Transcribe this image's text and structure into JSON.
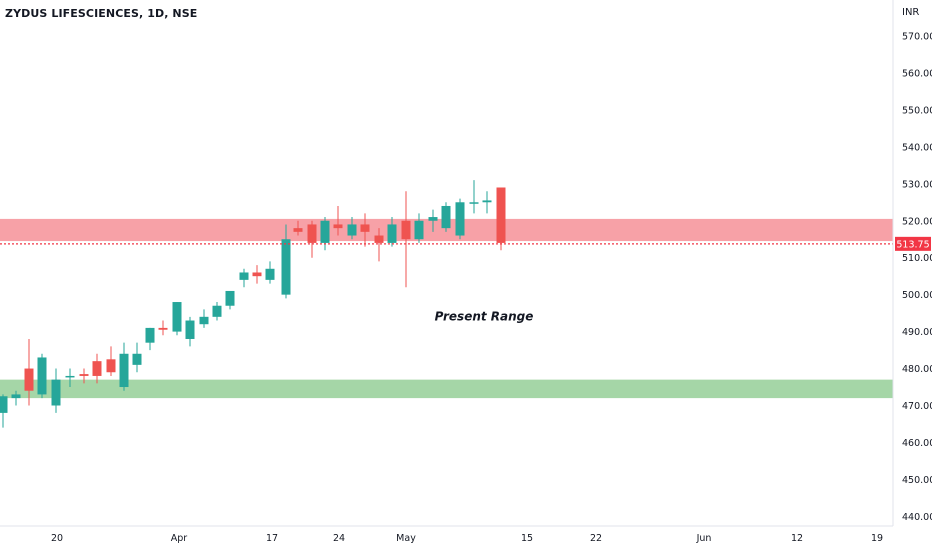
{
  "header": {
    "symbol_title": "ZYDUS LIFESCIENCES, 1D, NSE",
    "currency": "INR"
  },
  "chart_data": {
    "type": "candlestick",
    "ylim": [
      436,
      576
    ],
    "y_ticks": [
      "570.00",
      "560.00",
      "550.00",
      "540.00",
      "530.00",
      "520.00",
      "510.00",
      "500.00",
      "490.00",
      "480.00",
      "470.00",
      "460.00",
      "450.00",
      "440.00"
    ],
    "x_ticks": [
      "20",
      "Apr",
      "17",
      "24",
      "May",
      "15",
      "22",
      "Jun",
      "12",
      "19"
    ],
    "last_price": {
      "label": "513.75",
      "value": 513.75,
      "color": "#f23645"
    },
    "zones": [
      {
        "name": "resistance-zone",
        "from": 514.5,
        "to": 520.5,
        "color": "#f7a1a7"
      },
      {
        "name": "support-zone",
        "from": 472,
        "to": 477,
        "color": "#a5d6a7"
      }
    ],
    "annotation": {
      "text": "Present Range",
      "value": 493
    }
  },
  "colors": {
    "up": "#26a69a",
    "down": "#ef5350",
    "axis_text": "#131722"
  }
}
